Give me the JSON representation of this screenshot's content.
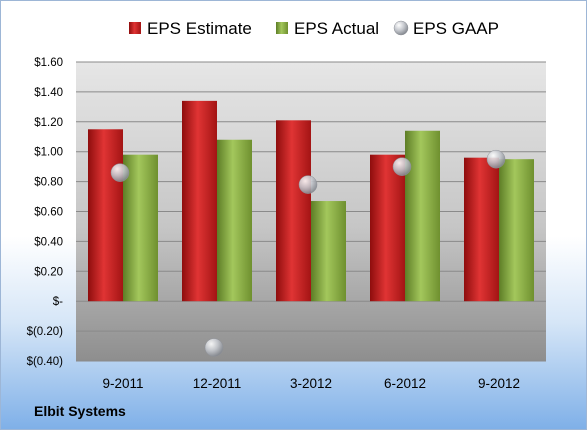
{
  "chart_data": {
    "type": "bar",
    "categories": [
      "9-2011",
      "12-2011",
      "3-2012",
      "6-2012",
      "9-2012"
    ],
    "series": [
      {
        "name": "EPS Estimate",
        "kind": "bar",
        "color": "#cc2222",
        "values": [
          1.15,
          1.34,
          1.21,
          0.98,
          0.96
        ]
      },
      {
        "name": "EPS Actual",
        "kind": "bar",
        "color": "#8db04a",
        "values": [
          0.98,
          1.08,
          0.67,
          1.14,
          0.95
        ]
      },
      {
        "name": "EPS GAAP",
        "kind": "scatter",
        "color": "#b8bcc4",
        "values": [
          0.86,
          -0.31,
          0.78,
          0.9,
          0.95
        ]
      }
    ],
    "ylim": [
      -0.4,
      1.6
    ],
    "yticks": [
      {
        "value": 1.6,
        "label": "$1.60"
      },
      {
        "value": 1.4,
        "label": "$1.40"
      },
      {
        "value": 1.2,
        "label": "$1.20"
      },
      {
        "value": 1.0,
        "label": "$1.00"
      },
      {
        "value": 0.8,
        "label": "$0.80"
      },
      {
        "value": 0.6,
        "label": "$0.60"
      },
      {
        "value": 0.4,
        "label": "$0.40"
      },
      {
        "value": 0.2,
        "label": "$0.20"
      },
      {
        "value": 0.0,
        "label": "$-"
      },
      {
        "value": -0.2,
        "label": "$(0.20)"
      },
      {
        "value": -0.4,
        "label": "$(0.40)"
      }
    ],
    "grid": true,
    "legend_position": "top"
  },
  "footer": {
    "company": "Elbit Systems"
  }
}
